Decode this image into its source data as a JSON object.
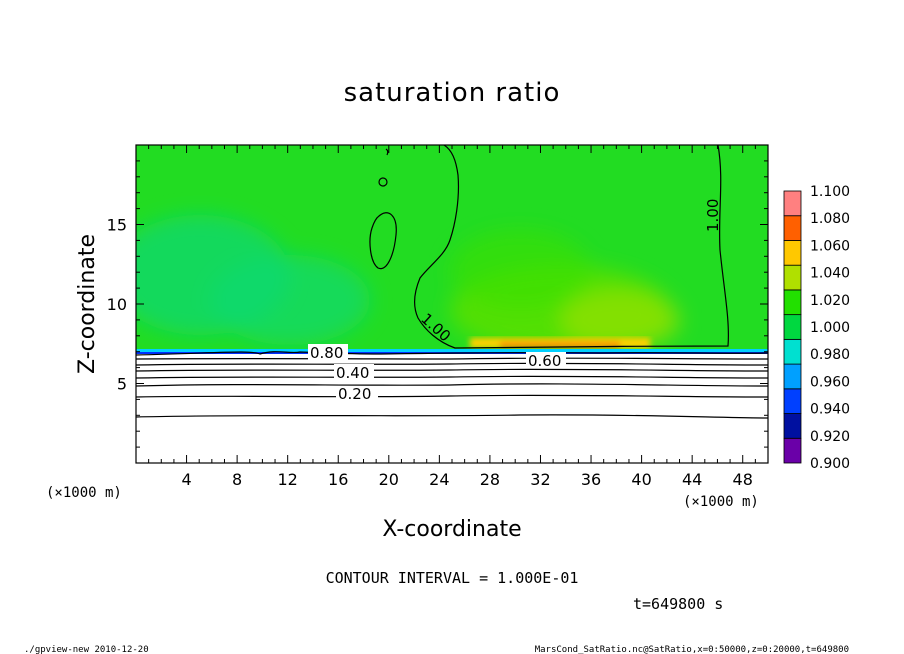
{
  "chart_data": {
    "type": "heatmap",
    "title": "saturation ratio",
    "xlabel": "X-coordinate",
    "ylabel": "Z-coordinate",
    "x_unit_label": "(×1000 m)",
    "y_unit_label": "(×1000 m)",
    "xlim": [
      0,
      50
    ],
    "ylim": [
      0,
      20
    ],
    "x_ticks": [
      4,
      8,
      12,
      16,
      20,
      24,
      28,
      32,
      36,
      40,
      44,
      48
    ],
    "y_ticks": [
      5,
      10,
      15
    ],
    "colorbar": {
      "levels": [
        0.9,
        0.92,
        0.94,
        0.96,
        0.98,
        1.0,
        1.02,
        1.04,
        1.06,
        1.08,
        1.1
      ],
      "labels": [
        "1.100",
        "1.080",
        "1.060",
        "1.040",
        "1.020",
        "1.000",
        "0.980",
        "0.960",
        "0.940",
        "0.920",
        "0.900"
      ],
      "colors": [
        "#6a00a8",
        "#0010a0",
        "#0040ff",
        "#00a0ff",
        "#00e0d0",
        "#00d840",
        "#22e000",
        "#b0e000",
        "#ffc800",
        "#ff6000",
        "#ff8080"
      ]
    },
    "contours": {
      "interval": 0.1,
      "labeled_levels": [
        "0.20",
        "0.40",
        "0.60",
        "0.80",
        "1.00"
      ]
    },
    "grid": false,
    "legend": "colorbar right"
  },
  "footer": {
    "contour_interval": "CONTOUR INTERVAL = 1.000E-01",
    "time": "t=649800 s",
    "program": "./gpview-new   2010-12-20",
    "source": "MarsCond_SatRatio.nc@SatRatio,x=0:50000,z=0:20000,t=649800"
  }
}
